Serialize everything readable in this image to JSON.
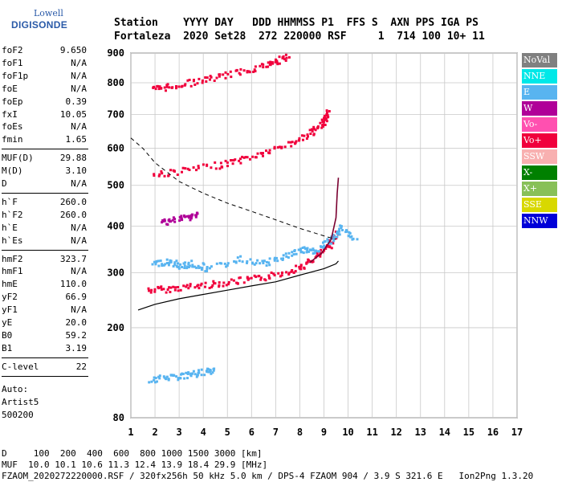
{
  "logo": {
    "line1": "Lowell",
    "line2": "DIGISONDE"
  },
  "header": {
    "row1": "Station    YYYY DAY   DDD HHMMSS P1  FFS S  AXN PPS IGA PS",
    "row2": "Fortaleza  2020 Set28  272 220000 RSF     1  714 100 10+ 11"
  },
  "params": {
    "group1": [
      {
        "k": "foF2",
        "v": "9.650"
      },
      {
        "k": "foF1",
        "v": "N/A"
      },
      {
        "k": "foF1p",
        "v": "N/A"
      },
      {
        "k": "foE",
        "v": "N/A"
      },
      {
        "k": "foEp",
        "v": "0.39"
      },
      {
        "k": "fxI",
        "v": "10.05"
      },
      {
        "k": "foEs",
        "v": "N/A"
      },
      {
        "k": "fmin",
        "v": "1.65"
      }
    ],
    "group2": [
      {
        "k": "MUF(D)",
        "v": "29.88"
      },
      {
        "k": "M(D)",
        "v": "3.10"
      },
      {
        "k": "D",
        "v": "N/A"
      }
    ],
    "group3": [
      {
        "k": "h`F",
        "v": "260.0"
      },
      {
        "k": "h`F2",
        "v": "260.0"
      },
      {
        "k": "h`E",
        "v": "N/A"
      },
      {
        "k": "h`Es",
        "v": "N/A"
      }
    ],
    "group4": [
      {
        "k": "hmF2",
        "v": "323.7"
      },
      {
        "k": "hmF1",
        "v": "N/A"
      },
      {
        "k": "hmE",
        "v": "110.0"
      },
      {
        "k": "yF2",
        "v": "66.9"
      },
      {
        "k": "yF1",
        "v": "N/A"
      },
      {
        "k": "yE",
        "v": "20.0"
      },
      {
        "k": "B0",
        "v": "59.2"
      },
      {
        "k": "B1",
        "v": "3.19"
      }
    ],
    "group5": [
      {
        "k": "C-level",
        "v": "22"
      }
    ],
    "auto": [
      "Auto:",
      "Artist5",
      "500200"
    ]
  },
  "legend": [
    {
      "label": "NoVal",
      "color": "#808080",
      "text": "#ffffff"
    },
    {
      "label": "NNE",
      "color": "#00e8e8",
      "text": "#ffffff"
    },
    {
      "label": "E",
      "color": "#58b4f0",
      "text": "#ffffff"
    },
    {
      "label": "W",
      "color": "#b00098",
      "text": "#ffffff"
    },
    {
      "label": "Vo-",
      "color": "#ff50b0",
      "text": "#ffffff"
    },
    {
      "label": "Vo+",
      "color": "#f0003c",
      "text": "#ffffff"
    },
    {
      "label": "SSW",
      "color": "#f8b0b0",
      "text": "#ffffff"
    },
    {
      "label": "X-",
      "color": "#008000",
      "text": "#ffffff"
    },
    {
      "label": "X+",
      "color": "#88c058",
      "text": "#ffffff"
    },
    {
      "label": "SSE",
      "color": "#d8d800",
      "text": "#ffffff"
    },
    {
      "label": "NNW",
      "color": "#0000d8",
      "text": "#ffffff"
    }
  ],
  "footer": {
    "line1": "D     100  200  400  600  800 1000 1500 3000 [km]",
    "line2": "MUF  10.0 10.1 10.6 11.3 12.4 13.9 18.4 29.9 [MHz]",
    "line3": "FZAOM_2020272220000.RSF / 320fx256h 50 kHz 5.0 km / DPS-4 FZAOM 904 / 3.9 S 321.6 E   Ion2Png 1.3.20"
  },
  "chart_data": {
    "type": "scatter",
    "x_ticks": [
      1,
      2,
      3,
      4,
      5,
      6,
      7,
      8,
      9,
      10,
      11,
      12,
      13,
      14,
      15,
      16,
      17
    ],
    "y_ticks": [
      80,
      200,
      300,
      400,
      500,
      600,
      700,
      800,
      900
    ],
    "xlim": [
      1,
      17
    ],
    "ylim": [
      80,
      900
    ],
    "y_scale": "sqrt",
    "grid": true,
    "series": [
      {
        "color": "#f0003c",
        "points": [
          [
            1.7,
            268
          ],
          [
            2.5,
            270
          ],
          [
            3.5,
            275
          ],
          [
            4.5,
            280
          ],
          [
            5.5,
            286
          ],
          [
            6.5,
            292
          ],
          [
            7.5,
            305
          ],
          [
            8.2,
            318
          ],
          [
            8.8,
            340
          ],
          [
            9.2,
            360
          ],
          [
            9.5,
            390
          ]
        ]
      },
      {
        "color": "#f0003c",
        "points": [
          [
            1.9,
            530
          ],
          [
            3,
            540
          ],
          [
            4.5,
            555
          ],
          [
            5.5,
            570
          ],
          [
            6.5,
            590
          ],
          [
            7.5,
            615
          ],
          [
            8.3,
            640
          ],
          [
            8.8,
            665
          ],
          [
            9,
            690
          ],
          [
            9.1,
            710
          ]
        ]
      },
      {
        "color": "#f0003c",
        "points": [
          [
            1.9,
            782
          ],
          [
            2.5,
            790
          ],
          [
            3.5,
            805
          ],
          [
            4.5,
            820
          ],
          [
            5.5,
            840
          ],
          [
            6.5,
            860
          ],
          [
            7,
            875
          ],
          [
            7.5,
            890
          ]
        ]
      },
      {
        "color": "#58b4f0",
        "points": [
          [
            1.9,
            320
          ],
          [
            2.5,
            325
          ],
          [
            3,
            315
          ],
          [
            3.5,
            320
          ],
          [
            4.2,
            310
          ],
          [
            5.5,
            330
          ],
          [
            6.5,
            320
          ],
          [
            7.3,
            335
          ],
          [
            8,
            350
          ],
          [
            8.5,
            345
          ],
          [
            9,
            360
          ],
          [
            9.4,
            380
          ],
          [
            9.7,
            400
          ],
          [
            10.3,
            370
          ]
        ]
      },
      {
        "color": "#58b4f0",
        "points": [
          [
            1.8,
            125
          ],
          [
            2.5,
            128
          ],
          [
            3,
            130
          ],
          [
            3.5,
            132
          ],
          [
            4,
            135
          ],
          [
            4.5,
            138
          ]
        ]
      },
      {
        "color": "#b00098",
        "points": [
          [
            2.2,
            412
          ],
          [
            2.8,
            418
          ],
          [
            3.4,
            425
          ],
          [
            3.7,
            430
          ]
        ]
      }
    ],
    "profile_solid": [
      [
        1.3,
        230
      ],
      [
        2,
        240
      ],
      [
        3,
        250
      ],
      [
        4,
        258
      ],
      [
        5,
        266
      ],
      [
        6,
        274
      ],
      [
        7,
        282
      ],
      [
        8,
        295
      ],
      [
        9,
        308
      ],
      [
        9.5,
        318
      ],
      [
        9.6,
        323.7
      ]
    ],
    "profile_dashed": [
      [
        1,
        630
      ],
      [
        1.5,
        600
      ],
      [
        2,
        560
      ],
      [
        3,
        510
      ],
      [
        4,
        480
      ],
      [
        5,
        455
      ],
      [
        6,
        435
      ],
      [
        7,
        415
      ],
      [
        8,
        395
      ],
      [
        9,
        378
      ],
      [
        9.5,
        370
      ]
    ],
    "trace_dark": [
      [
        8.4,
        320
      ],
      [
        8.9,
        340
      ],
      [
        9.3,
        370
      ],
      [
        9.5,
        420
      ],
      [
        9.55,
        480
      ],
      [
        9.6,
        520
      ]
    ]
  }
}
